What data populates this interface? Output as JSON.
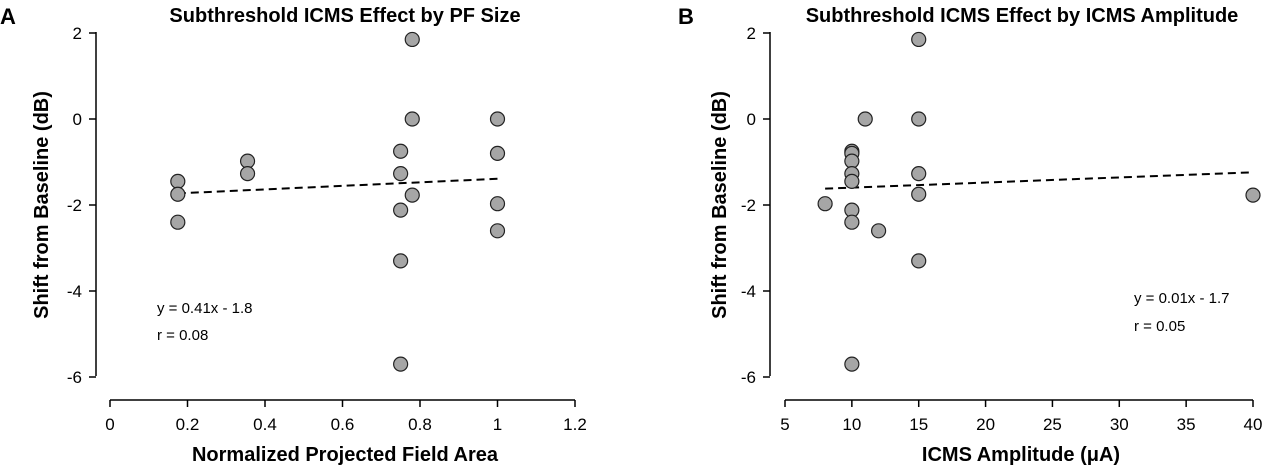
{
  "chart_data": [
    {
      "type": "scatter",
      "panel_label": "A",
      "title": "Subthreshold ICMS Effect by PF Size",
      "xlabel": "Normalized Projected Field Area",
      "ylabel": "Shift from Baseline (dB)",
      "xlim": [
        0,
        1.2
      ],
      "ylim": [
        -6,
        2
      ],
      "xticks": [
        "0",
        "0.2",
        "0.4",
        "0.6",
        "0.8",
        "1",
        "1.2"
      ],
      "yticks": [
        "2",
        "0",
        "-2",
        "-4",
        "-6"
      ],
      "points": [
        {
          "x": 0.175,
          "y": -1.45
        },
        {
          "x": 0.175,
          "y": -1.75
        },
        {
          "x": 0.175,
          "y": -2.4
        },
        {
          "x": 0.355,
          "y": -0.98
        },
        {
          "x": 0.355,
          "y": -1.27
        },
        {
          "x": 0.75,
          "y": -0.75
        },
        {
          "x": 0.75,
          "y": -1.27
        },
        {
          "x": 0.75,
          "y": -2.12
        },
        {
          "x": 0.75,
          "y": -3.3
        },
        {
          "x": 0.75,
          "y": -5.7
        },
        {
          "x": 0.78,
          "y": 1.85
        },
        {
          "x": 0.78,
          "y": 0.0
        },
        {
          "x": 0.78,
          "y": -1.77
        },
        {
          "x": 1.0,
          "y": 0.0
        },
        {
          "x": 1.0,
          "y": -0.8
        },
        {
          "x": 1.0,
          "y": -1.97
        },
        {
          "x": 1.0,
          "y": -2.6
        }
      ],
      "fit": {
        "x": [
          0.175,
          1.0
        ],
        "y": [
          -1.73,
          -1.39
        ]
      },
      "annotation": [
        "y = 0.41x - 1.8",
        "r = 0.08"
      ],
      "annotation_position": "bottom-left",
      "grid": false
    },
    {
      "type": "scatter",
      "panel_label": "B",
      "title": "Subthreshold ICMS Effect by ICMS Amplitude",
      "xlabel": "ICMS Amplitude (μA)",
      "ylabel": "Shift from Baseline (dB)",
      "xlim": [
        5,
        40
      ],
      "ylim": [
        -6,
        2
      ],
      "xticks": [
        "5",
        "10",
        "15",
        "20",
        "25",
        "30",
        "35",
        "40"
      ],
      "yticks": [
        "2",
        "0",
        "-2",
        "-4",
        "-6"
      ],
      "points": [
        {
          "x": 8,
          "y": -1.97
        },
        {
          "x": 10,
          "y": -0.75
        },
        {
          "x": 10,
          "y": -0.8
        },
        {
          "x": 10,
          "y": -0.98
        },
        {
          "x": 10,
          "y": -1.27
        },
        {
          "x": 10,
          "y": -1.45
        },
        {
          "x": 10,
          "y": -2.12
        },
        {
          "x": 10,
          "y": -2.4
        },
        {
          "x": 10,
          "y": -5.7
        },
        {
          "x": 11,
          "y": 0.0
        },
        {
          "x": 12,
          "y": -2.6
        },
        {
          "x": 15,
          "y": 1.85
        },
        {
          "x": 15,
          "y": 0.0
        },
        {
          "x": 15,
          "y": -1.27
        },
        {
          "x": 15,
          "y": -1.75
        },
        {
          "x": 15,
          "y": -3.3
        },
        {
          "x": 40,
          "y": -1.77
        }
      ],
      "fit": {
        "x": [
          8,
          40
        ],
        "y": [
          -1.62,
          -1.24
        ]
      },
      "annotation": [
        "y = 0.01x - 1.7",
        "r = 0.05"
      ],
      "annotation_position": "bottom-right",
      "grid": false
    }
  ]
}
